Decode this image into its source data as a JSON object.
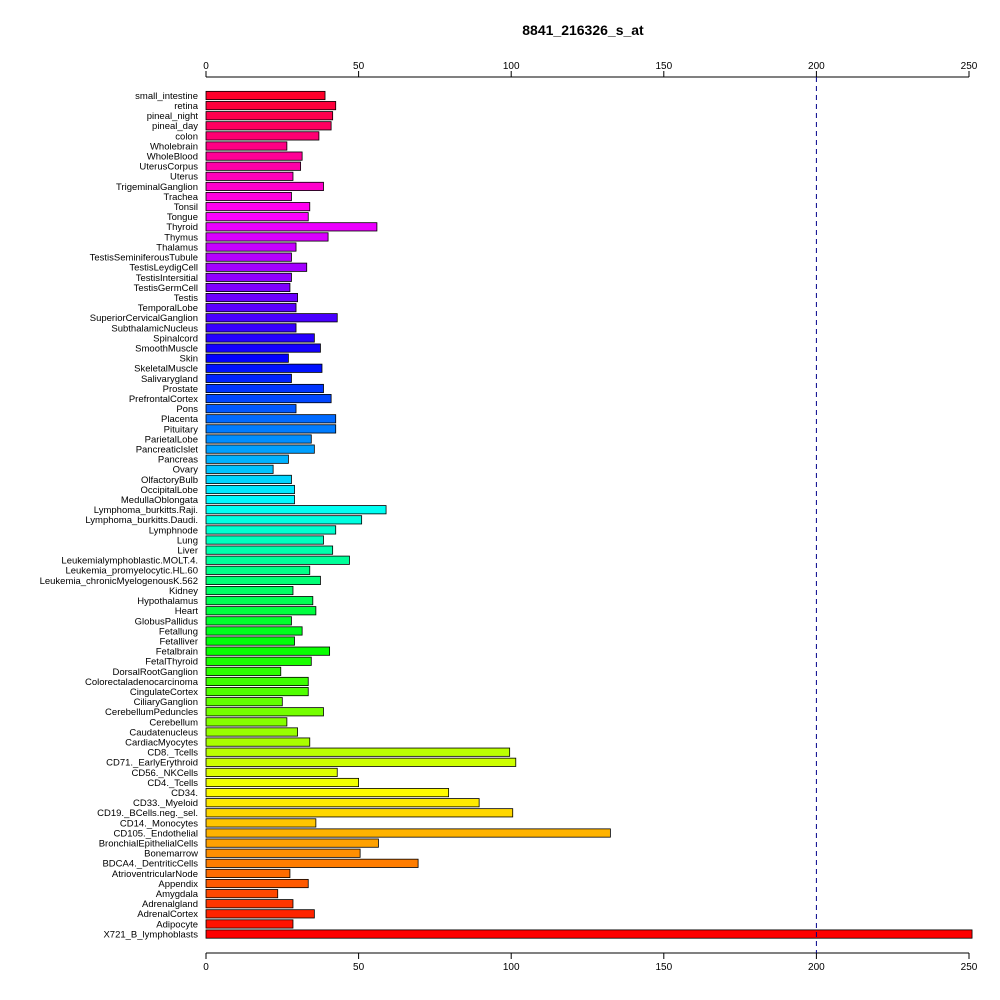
{
  "chart_data": {
    "type": "bar",
    "orientation": "horizontal",
    "title": "8841_216326_s_at",
    "xlim": [
      0,
      250
    ],
    "xticks": [
      0,
      50,
      100,
      150,
      200,
      250
    ],
    "reference_line": 200,
    "reference_line_color": "#00008b",
    "grid": false,
    "axes_position": "top and bottom",
    "categories": [
      "small_intestine",
      "retina",
      "pineal_night",
      "pineal_day",
      "colon",
      "Wholebrain",
      "WholeBlood",
      "UterusCorpus",
      "Uterus",
      "TrigeminalGanglion",
      "Trachea",
      "Tonsil",
      "Tongue",
      "Thyroid",
      "Thymus",
      "Thalamus",
      "TestisSeminiferousTubule",
      "TestisLeydigCell",
      "TestisIntersitial",
      "TestisGermCell",
      "Testis",
      "TemporalLobe",
      "SuperiorCervicalGanglion",
      "SubthalamicNucleus",
      "Spinalcord",
      "SmoothMuscle",
      "Skin",
      "SkeletalMuscle",
      "Salivarygland",
      "Prostate",
      "PrefrontalCortex",
      "Pons",
      "Placenta",
      "Pituitary",
      "ParietalLobe",
      "PancreaticIslet",
      "Pancreas",
      "Ovary",
      "OlfactoryBulb",
      "OccipitalLobe",
      "MedullaOblongata",
      "Lymphoma_burkitts.Raji.",
      "Lymphoma_burkitts.Daudi.",
      "Lymphnode",
      "Lung",
      "Liver",
      "Leukemialymphoblastic.MOLT.4.",
      "Leukemia_promyelocytic.HL.60",
      "Leukemia_chronicMyelogenousK.562",
      "Kidney",
      "Hypothalamus",
      "Heart",
      "GlobusPallidus",
      "Fetallung",
      "Fetalliver",
      "Fetalbrain",
      "FetalThyroid",
      "DorsalRootGanglion",
      "Colorectaladenocarcinoma",
      "CingulateCortex",
      "CiliaryGanglion",
      "CerebellumPeduncles",
      "Cerebellum",
      "Caudatenucleus",
      "CardiacMyocytes",
      "CD8._Tcells",
      "CD71._EarlyErythroid",
      "CD56._NKCells",
      "CD4._Tcells",
      "CD34.",
      "CD33._Myeloid",
      "CD19._BCells.neg._sel.",
      "CD14._Monocytes",
      "CD105._Endothelial",
      "BronchialEpithelialCells",
      "Bonemarrow",
      "BDCA4._DentriticCells",
      "AtrioventricularNode",
      "Appendix",
      "Amygdala",
      "Adrenalgland",
      "AdrenalCortex",
      "Adipocyte",
      "X721_B_lymphoblasts"
    ],
    "values": [
      39,
      42.5,
      41.5,
      41,
      37,
      26.5,
      31.5,
      31,
      28.5,
      38.5,
      28,
      34,
      33.5,
      56,
      40,
      29.5,
      28,
      33,
      28,
      27.5,
      30,
      29.5,
      43,
      29.5,
      35.5,
      37.5,
      27,
      38,
      28,
      38.5,
      41,
      29.5,
      42.5,
      42.5,
      34.5,
      35.5,
      27,
      22,
      28,
      29,
      29,
      59,
      51,
      42.5,
      38.5,
      41.5,
      47,
      34,
      37.5,
      28.5,
      35,
      36,
      28,
      31.5,
      29,
      40.5,
      34.5,
      24.5,
      33.5,
      33.5,
      25,
      38.5,
      26.5,
      30,
      34,
      99.5,
      101.5,
      43,
      50,
      79.5,
      89.5,
      100.5,
      36,
      132.5,
      56.5,
      50.5,
      69.5,
      27.5,
      33.5,
      23.5,
      28.5,
      35.5,
      28.5,
      251
    ]
  }
}
